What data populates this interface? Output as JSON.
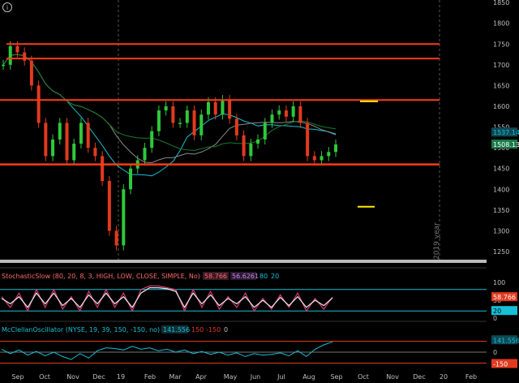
{
  "info_icon": "info-icon",
  "colors": {
    "background": "#000000",
    "grid": "#2a2a2a",
    "axis_text": "#bfbfbf",
    "price_up": "#2ec93b",
    "price_down": "#e23a1e",
    "support_resistance": "#ff3b1a",
    "ma_fast": "#17c0d6",
    "ma_slow": "#8a8a8a",
    "ma_green": "#1c7a2a",
    "yellow_marker": "#ffea00",
    "stoch_k": "#d83a73",
    "stoch_d": "#e8e8e8",
    "stoch_band": "#17c0d6",
    "mcclellan": "#17c0d6",
    "mcclellan_level": "#e23a1e",
    "label_green_bg": "#1b7a4a",
    "label_cyan_bg": "#17c0d6",
    "label_red_bg": "#e23a1e"
  },
  "price_axis": {
    "ticks": [
      "1850",
      "1800",
      "1750",
      "1700",
      "1650",
      "1600",
      "1550",
      "1500",
      "1450",
      "1400",
      "1350",
      "1300",
      "1250"
    ],
    "labels": {
      "last_price": "1508.13",
      "ma_value": "1537.14"
    }
  },
  "year_label": "2019 year",
  "time_axis": {
    "labels": [
      "Sep",
      "Oct",
      "Nov",
      "Dec",
      "19",
      "Feb",
      "Mar",
      "Apr",
      "May",
      "Jun",
      "Jul",
      "Aug",
      "Sep",
      "Oct",
      "Nov",
      "Dec",
      "20",
      "Feb"
    ]
  },
  "stochastic": {
    "title": "StochasticSlow (80, 20, 8, 3, HIGH, LOW, CLOSE, SIMPLE, No)",
    "k_value": "58.766",
    "d_value": "56.6261",
    "upper": "80",
    "lower": "20",
    "axis_ticks": [
      "100",
      "50",
      "0"
    ],
    "label_value": "58.766",
    "label_lower": "20"
  },
  "mcclellan": {
    "title": "McClellanOscillator (NYSE, 19, 39, 150, -150, no)",
    "value": "141.556",
    "upper": "150",
    "lower": "-150",
    "zero": "0",
    "axis_ticks": [
      "150",
      "0",
      "-150"
    ],
    "label_value": "141.556",
    "label_lower": "-150"
  },
  "chart_data": [
    {
      "type": "line",
      "title": "",
      "series": [
        {
          "values": [
            1700,
            1745,
            1730,
            1710,
            1650,
            1560,
            1480,
            1520,
            1560,
            1470,
            1510,
            1560,
            1500,
            1480,
            1420,
            1300,
            1265,
            1400,
            1450,
            1470,
            1500,
            1540,
            1590,
            1600,
            1560,
            1560,
            1590,
            1530,
            1580,
            1610,
            1580,
            1615,
            1570,
            1530,
            1480,
            1510,
            1520,
            1560,
            1580,
            1590,
            1575,
            1600,
            1560,
            1480,
            1470,
            1480,
            1490,
            1508
          ]
        }
      ],
      "ylim": [
        1250,
        1860
      ],
      "horizontal_levels": [
        1750,
        1715,
        1615,
        1460
      ],
      "xlabel": "",
      "ylabel": ""
    },
    {
      "type": "line",
      "title": "StochasticSlow (80, 20, 8, 3, HIGH, LOW, CLOSE, SIMPLE, No)",
      "series": [
        {
          "values": [
            60,
            30,
            70,
            20,
            80,
            30,
            80,
            25,
            60,
            20,
            75,
            30,
            80,
            30,
            70,
            20,
            80,
            90,
            90,
            85,
            80,
            20,
            80,
            30,
            75,
            25,
            60,
            30,
            70,
            20,
            55,
            25,
            65,
            30,
            70,
            20,
            55,
            25,
            58.8
          ]
        },
        {
          "values": [
            55,
            40,
            60,
            30,
            70,
            40,
            70,
            35,
            55,
            30,
            65,
            40,
            70,
            40,
            60,
            30,
            70,
            85,
            85,
            82,
            75,
            30,
            70,
            40,
            65,
            35,
            55,
            40,
            60,
            30,
            50,
            30,
            58,
            35,
            60,
            30,
            50,
            35,
            56.6
          ]
        }
      ],
      "ylim": [
        0,
        100
      ],
      "horizontal_levels": [
        80,
        20
      ]
    },
    {
      "type": "line",
      "title": "McClellanOscillator (NYSE, 19, 39, 150, -150, no)",
      "series": [
        {
          "values": [
            40,
            -20,
            30,
            -40,
            10,
            -50,
            0,
            -60,
            -100,
            -20,
            -80,
            20,
            60,
            50,
            30,
            80,
            40,
            60,
            20,
            40,
            0,
            30,
            -20,
            10,
            -30,
            0,
            -40,
            -10,
            -60,
            -20,
            -40,
            -30,
            -10,
            -50,
            20,
            -60,
            40,
            100,
            141.6
          ]
        }
      ],
      "ylim": [
        -200,
        200
      ],
      "horizontal_levels": [
        150,
        0,
        -150
      ]
    }
  ]
}
